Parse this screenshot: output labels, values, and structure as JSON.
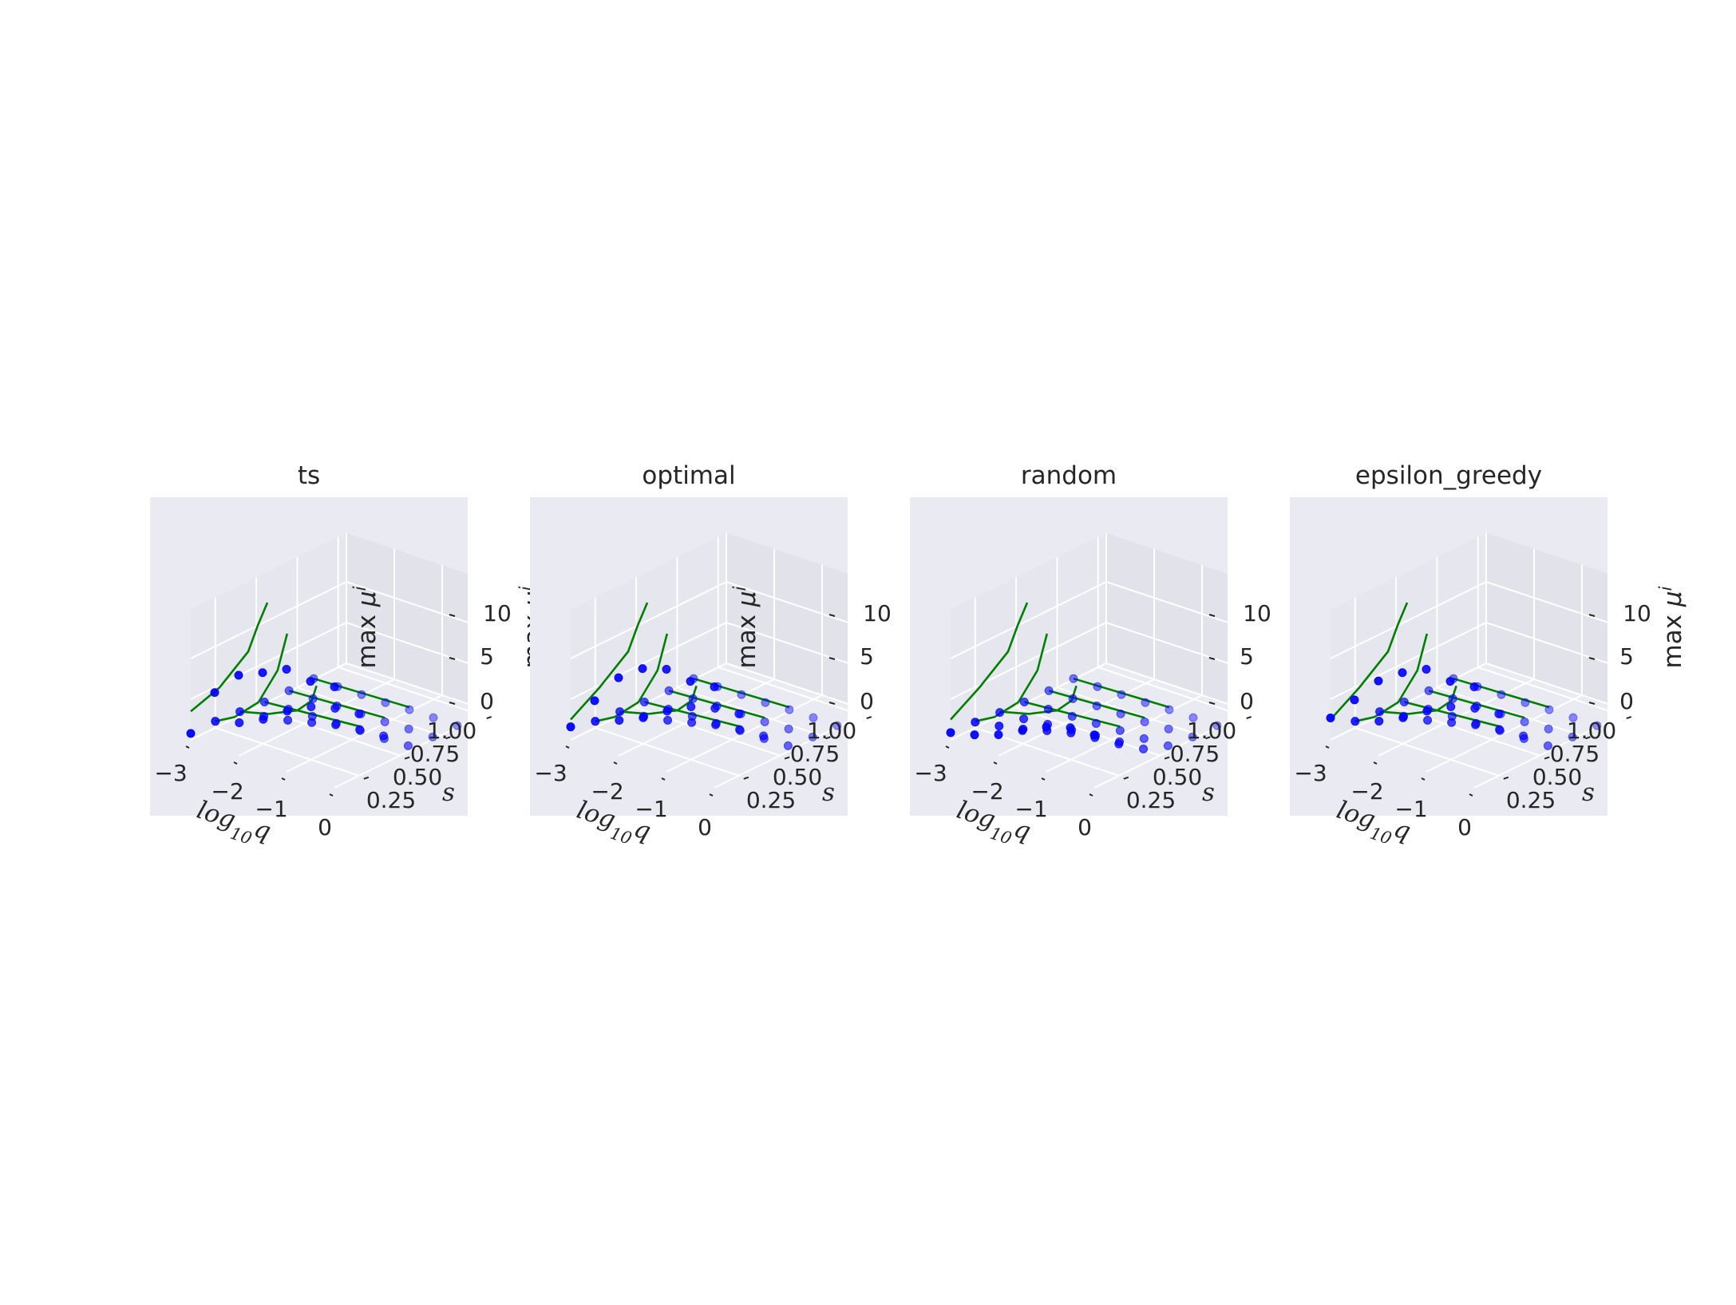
{
  "figure": {
    "axis_labels": {
      "x": "log",
      "x_sub": "10",
      "x_var": "q",
      "y": "s",
      "z_prefix": "max ",
      "z_var": "μ",
      "z_sup": "i"
    },
    "x_ticks": [
      "−3",
      "−2",
      "−1",
      "0"
    ],
    "y_ticks": [
      "0.25",
      "0.50",
      "0.75",
      "1.00"
    ],
    "z_ticks": [
      "0",
      "5",
      "10"
    ],
    "colors": {
      "pane": "#eaeaf2",
      "grid": "#ffffff",
      "points": "#0000ff",
      "curves": "#008000",
      "text": "#262626"
    }
  },
  "chart_data": [
    {
      "type": "scatter",
      "subplot": "3d",
      "title": "ts",
      "xlabel": "log10 q",
      "ylabel": "s",
      "zlabel": "max μ^i",
      "xlim": [
        -3,
        0
      ],
      "ylim": [
        0.1,
        1.05
      ],
      "zlim": [
        0,
        14
      ],
      "series": [
        {
          "s": 0.1,
          "log10_q": [
            -3.0,
            -2.5,
            -2.0,
            -1.5,
            -1.0,
            -0.5,
            0.0
          ],
          "max_mu": [
            0.8,
            6.8,
            9.9,
            11.2,
            12.6,
            12.1,
            12.4
          ],
          "curve_log10_q": [
            -3.0,
            -2.4,
            -1.8,
            -1.6,
            -1.4
          ],
          "curve_max_mu": [
            3.5,
            7.6,
            13.2,
            16.8,
            20.0
          ]
        },
        {
          "s": 0.25,
          "log10_q": [
            -3.0,
            -2.5,
            -2.0,
            -1.5,
            -1.0,
            -0.5,
            0.0
          ],
          "max_mu": [
            0.8,
            1.6,
            3.0,
            5.0,
            6.5,
            7.3,
            7.6
          ],
          "curve_log10_q": [
            -3.0,
            -2.6,
            -2.1,
            -1.7,
            -1.5
          ],
          "curve_max_mu": [
            0.8,
            2.1,
            4.9,
            9.6,
            14.5
          ]
        },
        {
          "s": 0.4,
          "log10_q": [
            -3.0,
            -2.5,
            -2.0,
            -1.5,
            -1.0,
            -0.5,
            0.0
          ],
          "max_mu": [
            0.5,
            0.9,
            1.4,
            2.1,
            2.8,
            3.2,
            3.4
          ],
          "curve_log10_q": [
            -3.0,
            -2.4,
            -1.8,
            -1.5,
            -1.4
          ],
          "curve_max_mu": [
            0.5,
            1.4,
            3.0,
            4.8,
            6.8
          ]
        },
        {
          "s": 0.55,
          "log10_q": [
            -3.0,
            -2.5,
            -2.0,
            -1.5,
            -1.0,
            -0.5,
            0.0
          ],
          "max_mu": [
            0.2,
            0.3,
            0.4,
            0.5,
            0.6,
            0.6,
            0.7
          ],
          "curve_log10_q": [
            -3.0,
            -1.0
          ],
          "curve_max_mu": [
            0.2,
            1.1
          ]
        },
        {
          "s": 0.7,
          "log10_q": [
            -3.0,
            -2.5,
            -2.0,
            -1.5,
            -1.0,
            -0.5,
            0.0
          ],
          "max_mu": [
            0.1,
            0.1,
            0.2,
            0.2,
            0.2,
            0.3,
            0.3
          ],
          "curve_log10_q": [
            -3.0,
            -1.0
          ],
          "curve_max_mu": [
            0.1,
            0.7
          ]
        },
        {
          "s": 0.85,
          "log10_q": [
            -3.0,
            -2.5,
            -2.0,
            -1.5,
            -1.0,
            -0.5,
            0.0
          ],
          "max_mu": [
            0.1,
            0.1,
            0.1,
            0.1,
            0.2,
            0.2,
            0.2
          ],
          "curve_log10_q": [
            -3.0,
            -1.0
          ],
          "curve_max_mu": [
            0.1,
            0.5
          ]
        }
      ]
    },
    {
      "type": "scatter",
      "subplot": "3d",
      "title": "optimal",
      "xlabel": "log10 q",
      "ylabel": "s",
      "zlabel": "max μ^i",
      "xlim": [
        -3,
        0
      ],
      "ylim": [
        0.1,
        1.05
      ],
      "zlim": [
        0,
        14
      ],
      "series": [
        {
          "s": 0.1,
          "log10_q": [
            -3.0,
            -2.5,
            -2.0,
            -1.5,
            -1.0,
            -0.5,
            0.0
          ],
          "max_mu": [
            1.6,
            5.8,
            9.6,
            11.7,
            12.6,
            12.1,
            12.4
          ],
          "curve_log10_q": [
            -3.0,
            -2.4,
            -1.8,
            -1.6,
            -1.4
          ],
          "curve_max_mu": [
            2.5,
            7.6,
            13.2,
            16.8,
            20.0
          ]
        },
        {
          "s": 0.25,
          "log10_q": [
            -3.0,
            -2.5,
            -2.0,
            -1.5,
            -1.0,
            -0.5,
            0.0
          ],
          "max_mu": [
            0.8,
            1.9,
            3.2,
            5.0,
            6.5,
            7.3,
            7.6
          ],
          "curve_log10_q": [
            -3.0,
            -2.6,
            -2.1,
            -1.7,
            -1.5
          ],
          "curve_max_mu": [
            0.8,
            2.1,
            4.9,
            9.6,
            14.5
          ]
        },
        {
          "s": 0.4,
          "log10_q": [
            -3.0,
            -2.5,
            -2.0,
            -1.5,
            -1.0,
            -0.5,
            0.0
          ],
          "max_mu": [
            0.5,
            0.9,
            1.4,
            2.1,
            2.8,
            3.2,
            3.4
          ],
          "curve_log10_q": [
            -3.0,
            -2.4,
            -1.8,
            -1.5,
            -1.4
          ],
          "curve_max_mu": [
            0.5,
            1.4,
            3.0,
            4.8,
            6.8
          ]
        },
        {
          "s": 0.55,
          "log10_q": [
            -3.0,
            -2.5,
            -2.0,
            -1.5,
            -1.0,
            -0.5,
            0.0
          ],
          "max_mu": [
            0.2,
            0.3,
            0.4,
            0.5,
            0.6,
            0.6,
            0.7
          ],
          "curve_log10_q": [
            -3.0,
            -1.0
          ],
          "curve_max_mu": [
            0.2,
            1.1
          ]
        },
        {
          "s": 0.7,
          "log10_q": [
            -3.0,
            -2.5,
            -2.0,
            -1.5,
            -1.0,
            -0.5,
            0.0
          ],
          "max_mu": [
            0.1,
            0.1,
            0.2,
            0.2,
            0.2,
            0.3,
            0.3
          ],
          "curve_log10_q": [
            -3.0,
            -1.0
          ],
          "curve_max_mu": [
            0.1,
            0.7
          ]
        },
        {
          "s": 0.85,
          "log10_q": [
            -3.0,
            -2.5,
            -2.0,
            -1.5,
            -1.0,
            -0.5,
            0.0
          ],
          "max_mu": [
            0.1,
            0.1,
            0.1,
            0.1,
            0.2,
            0.2,
            0.2
          ],
          "curve_log10_q": [
            -3.0,
            -1.0
          ],
          "curve_max_mu": [
            0.1,
            0.5
          ]
        }
      ]
    },
    {
      "type": "scatter",
      "subplot": "3d",
      "title": "random",
      "xlabel": "log10 q",
      "ylabel": "s",
      "zlabel": "max μ^i",
      "xlim": [
        -3,
        0
      ],
      "ylim": [
        0.1,
        1.05
      ],
      "zlim": [
        0,
        14
      ],
      "series": [
        {
          "s": 0.1,
          "log10_q": [
            -3.0,
            -2.5,
            -2.0,
            -1.5,
            -1.0,
            -0.5,
            0.0
          ],
          "max_mu": [
            0.9,
            1.6,
            2.6,
            4.1,
            5.5,
            6.4,
            6.5
          ],
          "curve_log10_q": [
            -3.0,
            -2.4,
            -1.8,
            -1.6,
            -1.4
          ],
          "curve_max_mu": [
            2.5,
            7.6,
            13.2,
            16.8,
            20.0
          ]
        },
        {
          "s": 0.25,
          "log10_q": [
            -3.0,
            -2.5,
            -2.0,
            -1.5,
            -1.0,
            -0.5,
            0.0
          ],
          "max_mu": [
            0.7,
            1.2,
            1.8,
            2.6,
            3.3,
            3.7,
            3.9
          ],
          "curve_log10_q": [
            -3.0,
            -2.6,
            -2.1,
            -1.7,
            -1.5
          ],
          "curve_max_mu": [
            0.8,
            2.1,
            4.9,
            9.6,
            14.5
          ]
        },
        {
          "s": 0.4,
          "log10_q": [
            -3.0,
            -2.5,
            -2.0,
            -1.5,
            -1.0,
            -0.5,
            0.0
          ],
          "max_mu": [
            0.4,
            0.6,
            0.9,
            1.2,
            1.5,
            1.7,
            1.8
          ],
          "curve_log10_q": [
            -3.0,
            -2.4,
            -1.8,
            -1.5,
            -1.4
          ],
          "curve_max_mu": [
            0.5,
            1.4,
            3.0,
            4.8,
            6.8
          ]
        },
        {
          "s": 0.55,
          "log10_q": [
            -3.0,
            -2.5,
            -2.0,
            -1.5,
            -1.0,
            -0.5,
            0.0
          ],
          "max_mu": [
            0.2,
            0.3,
            0.4,
            0.5,
            0.6,
            0.6,
            0.7
          ],
          "curve_log10_q": [
            -3.0,
            -1.0
          ],
          "curve_max_mu": [
            0.2,
            1.1
          ]
        },
        {
          "s": 0.7,
          "log10_q": [
            -3.0,
            -2.5,
            -2.0,
            -1.5,
            -1.0,
            -0.5,
            0.0
          ],
          "max_mu": [
            0.1,
            0.1,
            0.2,
            0.2,
            0.2,
            0.3,
            0.3
          ],
          "curve_log10_q": [
            -3.0,
            -1.0
          ],
          "curve_max_mu": [
            0.1,
            0.7
          ]
        },
        {
          "s": 0.85,
          "log10_q": [
            -3.0,
            -2.5,
            -2.0,
            -1.5,
            -1.0,
            -0.5,
            0.0
          ],
          "max_mu": [
            0.1,
            0.1,
            0.1,
            0.1,
            0.2,
            0.2,
            0.2
          ],
          "curve_log10_q": [
            -3.0,
            -1.0
          ],
          "curve_max_mu": [
            0.1,
            0.5
          ]
        }
      ]
    },
    {
      "type": "scatter",
      "subplot": "3d",
      "title": "epsilon_greedy",
      "xlabel": "log10 q",
      "ylabel": "s",
      "zlabel": "max μ^i",
      "xlim": [
        -3,
        0
      ],
      "ylim": [
        0.1,
        1.05
      ],
      "zlim": [
        0,
        14
      ],
      "series": [
        {
          "s": 0.1,
          "log10_q": [
            -3.0,
            -2.5,
            -2.0,
            -1.5,
            -1.0,
            -0.5,
            0.0
          ],
          "max_mu": [
            2.7,
            5.9,
            9.2,
            11.2,
            12.6,
            12.1,
            12.4
          ],
          "curve_log10_q": [
            -3.0,
            -2.4,
            -1.8,
            -1.6,
            -1.4
          ],
          "curve_max_mu": [
            2.5,
            7.6,
            13.2,
            16.8,
            20.0
          ]
        },
        {
          "s": 0.25,
          "log10_q": [
            -3.0,
            -2.5,
            -2.0,
            -1.5,
            -1.0,
            -0.5,
            0.0
          ],
          "max_mu": [
            0.8,
            1.8,
            3.2,
            5.0,
            6.5,
            7.3,
            7.6
          ],
          "curve_log10_q": [
            -3.0,
            -2.6,
            -2.1,
            -1.7,
            -1.5
          ],
          "curve_max_mu": [
            0.8,
            2.1,
            4.9,
            9.6,
            14.5
          ]
        },
        {
          "s": 0.4,
          "log10_q": [
            -3.0,
            -2.5,
            -2.0,
            -1.5,
            -1.0,
            -0.5,
            0.0
          ],
          "max_mu": [
            0.5,
            0.9,
            1.4,
            2.1,
            2.8,
            3.2,
            3.4
          ],
          "curve_log10_q": [
            -3.0,
            -2.4,
            -1.8,
            -1.5,
            -1.4
          ],
          "curve_max_mu": [
            0.5,
            1.4,
            3.0,
            4.8,
            6.8
          ]
        },
        {
          "s": 0.55,
          "log10_q": [
            -3.0,
            -2.5,
            -2.0,
            -1.5,
            -1.0,
            -0.5,
            0.0
          ],
          "max_mu": [
            0.2,
            0.3,
            0.4,
            0.5,
            0.6,
            0.6,
            0.7
          ],
          "curve_log10_q": [
            -3.0,
            -1.0
          ],
          "curve_max_mu": [
            0.2,
            1.1
          ]
        },
        {
          "s": 0.7,
          "log10_q": [
            -3.0,
            -2.5,
            -2.0,
            -1.5,
            -1.0,
            -0.5,
            0.0
          ],
          "max_mu": [
            0.1,
            0.1,
            0.2,
            0.2,
            0.2,
            0.3,
            0.3
          ],
          "curve_log10_q": [
            -3.0,
            -1.0
          ],
          "curve_max_mu": [
            0.1,
            0.7
          ]
        },
        {
          "s": 0.85,
          "log10_q": [
            -3.0,
            -2.5,
            -2.0,
            -1.5,
            -1.0,
            -0.5,
            0.0
          ],
          "max_mu": [
            0.1,
            0.1,
            0.1,
            0.1,
            0.2,
            0.2,
            0.2
          ],
          "curve_log10_q": [
            -3.0,
            -1.0
          ],
          "curve_max_mu": [
            0.1,
            0.5
          ]
        }
      ]
    }
  ]
}
